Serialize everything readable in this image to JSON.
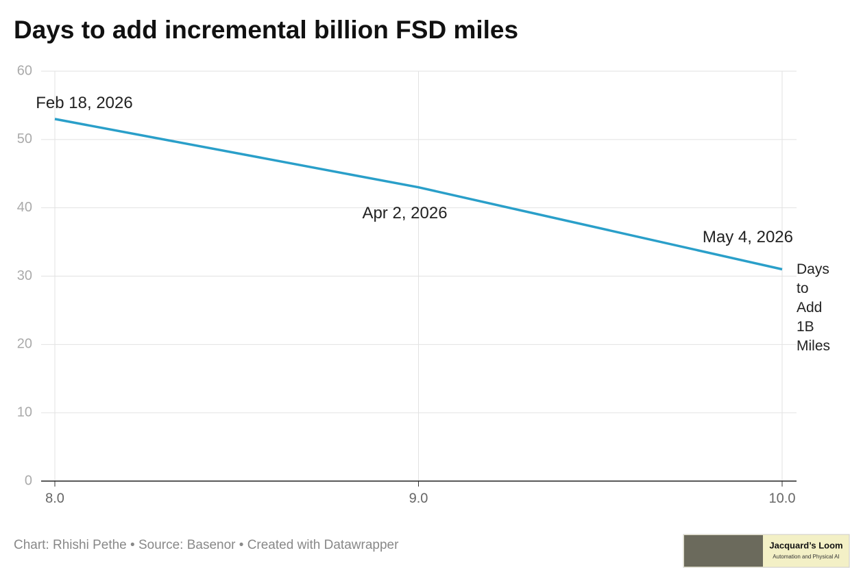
{
  "chart_data": {
    "type": "line",
    "title": "Days to add incremental billion FSD miles",
    "x": [
      8,
      9,
      10
    ],
    "series": [
      {
        "name": "Days to Add 1B Miles",
        "color": "#2a9fc9",
        "values": [
          53,
          43,
          31
        ]
      }
    ],
    "point_labels": [
      "Feb 18, 2026",
      "Apr 2, 2026",
      "May 4, 2026"
    ],
    "xlim": [
      8,
      10
    ],
    "xticks": [
      {
        "value": 8,
        "label": "8.0"
      },
      {
        "value": 9,
        "label": "9.0"
      },
      {
        "value": 10,
        "label": "10.0"
      }
    ],
    "ylim": [
      0,
      60
    ],
    "yticks": [
      0,
      10,
      20,
      30,
      40,
      50,
      60
    ],
    "grid": true,
    "credit": "Chart: Rhishi Pethe • Source: Basenor • Created with Datawrapper"
  },
  "logo": {
    "title": "Jacquard’s Loom",
    "subtitle": "Automation and Physical AI"
  }
}
